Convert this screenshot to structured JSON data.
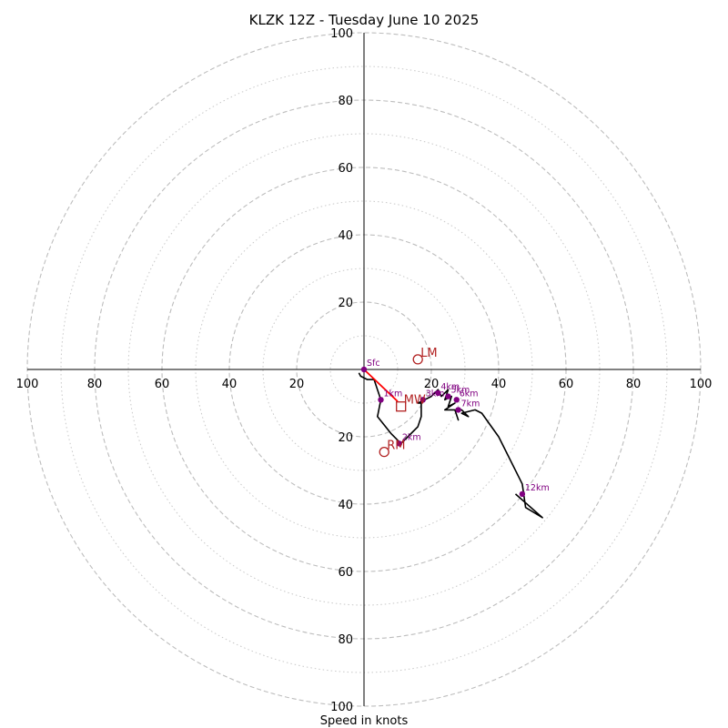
{
  "chart_data": {
    "type": "line",
    "subtype": "hodograph",
    "title": "KLZK 12Z - Tuesday June 10 2025",
    "xlabel": "Speed in knots",
    "ylabel": "",
    "xlim": [
      -100,
      100
    ],
    "ylim": [
      -100,
      100
    ],
    "grid": true,
    "major_ring_values": [
      20,
      40,
      60,
      80,
      100
    ],
    "minor_ring_values": [
      10,
      30,
      50,
      70,
      90
    ],
    "axis_tick_labels": {
      "x_negative": [
        "100",
        "80",
        "60",
        "40",
        "20"
      ],
      "x_positive": [
        "20",
        "40",
        "60",
        "80",
        "100"
      ],
      "y_positive": [
        "20",
        "40",
        "60",
        "80",
        "100"
      ],
      "y_negative": [
        "20",
        "40",
        "60",
        "80",
        "100"
      ]
    },
    "hodograph": {
      "name": "",
      "color": "#000000",
      "points": [
        [
          -1.5,
          -1
        ],
        [
          -1,
          -2
        ],
        [
          1,
          -3
        ],
        [
          3,
          -3
        ],
        [
          4,
          -6
        ],
        [
          5,
          -9
        ],
        [
          4,
          -14
        ],
        [
          8,
          -19
        ],
        [
          11,
          -22
        ],
        [
          13,
          -20
        ],
        [
          16,
          -17
        ],
        [
          17,
          -14
        ],
        [
          17,
          -10
        ],
        [
          16,
          -10
        ],
        [
          18,
          -9
        ],
        [
          20,
          -8
        ],
        [
          21,
          -7
        ],
        [
          22,
          -6
        ],
        [
          23,
          -8
        ],
        [
          25,
          -6
        ],
        [
          24,
          -9
        ],
        [
          26,
          -8
        ],
        [
          25,
          -11
        ],
        [
          27,
          -10
        ],
        [
          24,
          -12
        ],
        [
          27,
          -12
        ],
        [
          28,
          -15
        ],
        [
          27,
          -12
        ],
        [
          29,
          -12
        ],
        [
          31,
          -14
        ],
        [
          29,
          -13
        ],
        [
          33,
          -12
        ],
        [
          35,
          -13
        ],
        [
          40,
          -20
        ],
        [
          47,
          -34
        ],
        [
          48,
          -41
        ],
        [
          53,
          -44
        ],
        [
          45,
          -37
        ]
      ]
    },
    "height_markers": [
      {
        "label": "Sfc",
        "x": 0,
        "y": 0
      },
      {
        "label": "1km",
        "x": 5,
        "y": -9
      },
      {
        "label": "2km",
        "x": 10.5,
        "y": -22
      },
      {
        "label": "3km",
        "x": 17.5,
        "y": -9
      },
      {
        "label": "4km",
        "x": 22,
        "y": -7
      },
      {
        "label": "5km",
        "x": 25,
        "y": -8
      },
      {
        "label": "6km",
        "x": 27.5,
        "y": -9
      },
      {
        "label": "7km",
        "x": 28,
        "y": -12
      },
      {
        "label": "12km",
        "x": 47,
        "y": -37
      }
    ],
    "marker_color": "#800080",
    "shear_vector": {
      "color": "#ff0000",
      "from": [
        0,
        0
      ],
      "to": [
        10,
        -9.5
      ]
    },
    "storm_motion": [
      {
        "label": "LM",
        "x": 16,
        "y": 3,
        "marker": "circle"
      },
      {
        "label": "RM",
        "x": 6,
        "y": -24.5,
        "marker": "circle"
      },
      {
        "label": "MW",
        "x": 11,
        "y": -11,
        "marker": "square"
      }
    ],
    "storm_motion_color": "#b22222"
  }
}
